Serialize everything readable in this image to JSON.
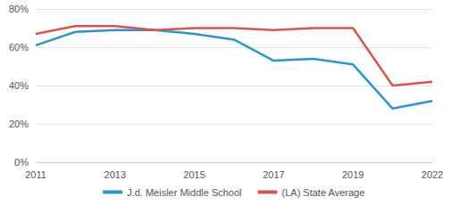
{
  "chart_data": {
    "type": "line",
    "categories": [
      "2011",
      null,
      "2013",
      null,
      "2015",
      null,
      "2017",
      null,
      "2019",
      null,
      "2022"
    ],
    "series": [
      {
        "name": "J.d. Meisler Middle School",
        "color": "#2b95d0",
        "values": [
          61,
          68,
          69,
          69,
          67,
          64,
          53,
          54,
          51,
          28,
          32
        ]
      },
      {
        "name": "(LA) State Average",
        "color": "#d9534f",
        "values": [
          67,
          71,
          71,
          69,
          70,
          70,
          69,
          70,
          70,
          40,
          42
        ]
      }
    ],
    "ylim": [
      0,
      80
    ],
    "yticks": [
      {
        "value": 0,
        "label": "0%"
      },
      {
        "value": 20,
        "label": "20%"
      },
      {
        "value": 40,
        "label": "40%"
      },
      {
        "value": 60,
        "label": "60%"
      },
      {
        "value": 80,
        "label": "80%"
      }
    ],
    "grid": true,
    "legend": "bottom"
  }
}
